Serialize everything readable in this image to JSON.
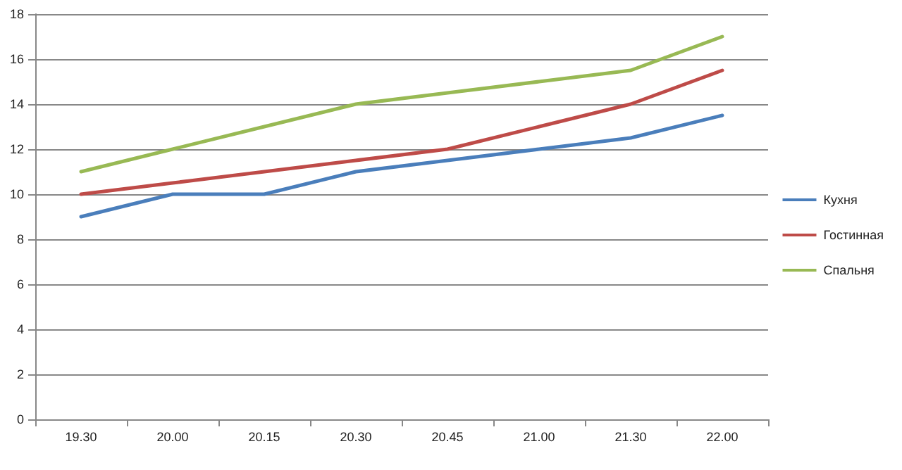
{
  "chart_data": {
    "type": "line",
    "categories": [
      "19.30",
      "20.00",
      "20.15",
      "20.30",
      "20.45",
      "21.00",
      "21.30",
      "22.00"
    ],
    "series": [
      {
        "name": "Кухня",
        "color": "#4a7ebb",
        "values": [
          9,
          10,
          10,
          11,
          11.5,
          12,
          12.5,
          13.5
        ]
      },
      {
        "name": "Гостинная",
        "color": "#be4b48",
        "values": [
          10,
          10.5,
          11,
          11.5,
          12,
          13,
          14,
          15.5
        ]
      },
      {
        "name": "Спальня",
        "color": "#98b954",
        "values": [
          11,
          12,
          13,
          14,
          14.5,
          15,
          15.5,
          17
        ]
      }
    ],
    "ylim": [
      0,
      18
    ],
    "yticks": [
      0,
      2,
      4,
      6,
      8,
      10,
      12,
      14,
      16,
      18
    ],
    "grid": "y",
    "legend": "right",
    "marker": "none",
    "line_style": "solid"
  }
}
